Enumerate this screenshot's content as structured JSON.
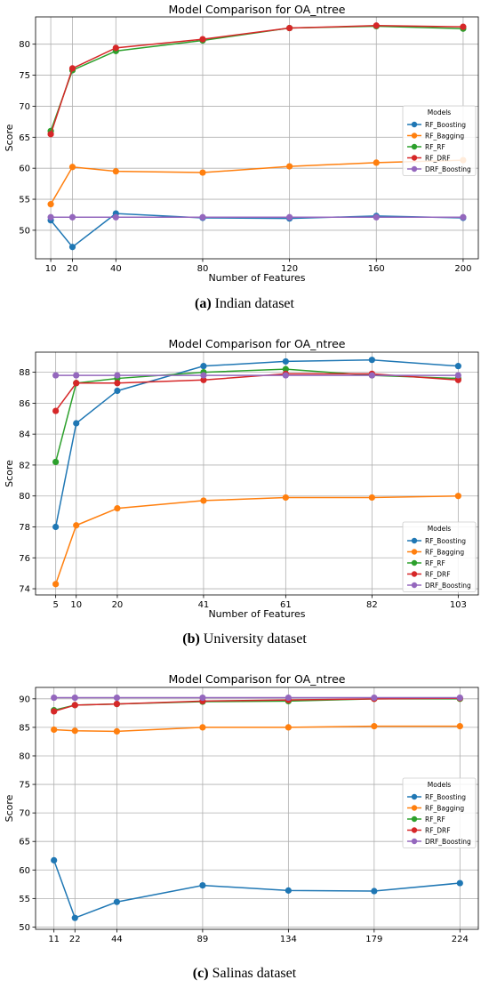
{
  "chart_data": [
    {
      "type": "line",
      "title": "Model Comparison for OA_ntree",
      "xlabel": "Number of Features",
      "ylabel": "Score",
      "x": [
        10,
        20,
        40,
        80,
        120,
        160,
        200
      ],
      "xlim": [
        3,
        207
      ],
      "ylim": [
        45.4,
        84.4
      ],
      "yticks": [
        50,
        55,
        60,
        65,
        70,
        75,
        80
      ],
      "legend_title": "Models",
      "legend_placement": "center-right",
      "grid": true,
      "series": [
        {
          "name": "RF_Boosting",
          "color": "#1f77b4",
          "values": [
            51.6,
            47.3,
            52.7,
            52.0,
            51.9,
            52.3,
            52.0
          ]
        },
        {
          "name": "RF_Bagging",
          "color": "#ff7f0e",
          "values": [
            54.2,
            60.2,
            59.5,
            59.3,
            60.3,
            60.9,
            61.3
          ]
        },
        {
          "name": "RF_RF",
          "color": "#2ca02c",
          "values": [
            66.0,
            75.8,
            78.9,
            80.6,
            82.6,
            82.9,
            82.5
          ]
        },
        {
          "name": "RF_DRF",
          "color": "#d62728",
          "values": [
            65.5,
            76.1,
            79.4,
            80.8,
            82.6,
            83.0,
            82.8
          ]
        },
        {
          "name": "DRF_Boosting",
          "color": "#9467bd",
          "values": [
            52.1,
            52.1,
            52.1,
            52.1,
            52.1,
            52.1,
            52.1
          ]
        }
      ],
      "caption_label": "(a)",
      "caption_text": " Indian dataset"
    },
    {
      "type": "line",
      "title": "Model Comparison for OA_ntree",
      "xlabel": "Number of Features",
      "ylabel": "Score",
      "x": [
        5,
        10,
        20,
        41,
        61,
        82,
        103
      ],
      "xlim": [
        0.1,
        107.9
      ],
      "ylim": [
        73.6,
        89.3
      ],
      "yticks": [
        74,
        76,
        78,
        80,
        82,
        84,
        86,
        88
      ],
      "legend_title": "Models",
      "legend_placement": "lower-right",
      "grid": true,
      "series": [
        {
          "name": "RF_Boosting",
          "color": "#1f77b4",
          "values": [
            78.0,
            84.7,
            86.8,
            88.4,
            88.7,
            88.8,
            88.4
          ]
        },
        {
          "name": "RF_Bagging",
          "color": "#ff7f0e",
          "values": [
            74.3,
            78.1,
            79.2,
            79.7,
            79.9,
            79.9,
            80.0
          ]
        },
        {
          "name": "RF_RF",
          "color": "#2ca02c",
          "values": [
            82.2,
            87.3,
            87.6,
            88.0,
            88.2,
            87.8,
            87.6
          ]
        },
        {
          "name": "RF_DRF",
          "color": "#d62728",
          "values": [
            85.5,
            87.3,
            87.3,
            87.5,
            87.9,
            87.9,
            87.5
          ]
        },
        {
          "name": "DRF_Boosting",
          "color": "#9467bd",
          "values": [
            87.8,
            87.8,
            87.8,
            87.8,
            87.8,
            87.8,
            87.8
          ]
        }
      ],
      "caption_label": "(b)",
      "caption_text": " University dataset"
    },
    {
      "type": "line",
      "title": "Model Comparison for OA_ntree",
      "xlabel": "Number of Features",
      "ylabel": "Score",
      "x": [
        11,
        22,
        44,
        89,
        134,
        179,
        224
      ],
      "xlim": [
        1.35,
        233.65
      ],
      "ylim": [
        49.6,
        92.0
      ],
      "yticks": [
        50,
        55,
        60,
        65,
        70,
        75,
        80,
        85,
        90
      ],
      "legend_title": "Models",
      "legend_placement": "center-right",
      "grid": true,
      "series": [
        {
          "name": "RF_Boosting",
          "color": "#1f77b4",
          "values": [
            61.7,
            51.6,
            54.4,
            57.3,
            56.4,
            56.3,
            57.7
          ]
        },
        {
          "name": "RF_Bagging",
          "color": "#ff7f0e",
          "values": [
            84.6,
            84.4,
            84.3,
            85.0,
            85.0,
            85.2,
            85.2
          ]
        },
        {
          "name": "RF_RF",
          "color": "#2ca02c",
          "values": [
            88.0,
            88.9,
            89.1,
            89.5,
            89.6,
            90.0,
            90.0
          ]
        },
        {
          "name": "RF_DRF",
          "color": "#d62728",
          "values": [
            87.8,
            88.9,
            89.1,
            89.6,
            89.8,
            90.0,
            90.1
          ]
        },
        {
          "name": "DRF_Boosting",
          "color": "#9467bd",
          "values": [
            90.2,
            90.2,
            90.2,
            90.2,
            90.2,
            90.2,
            90.2
          ]
        }
      ],
      "caption_label": "(c)",
      "caption_text": " Salinas dataset"
    }
  ]
}
